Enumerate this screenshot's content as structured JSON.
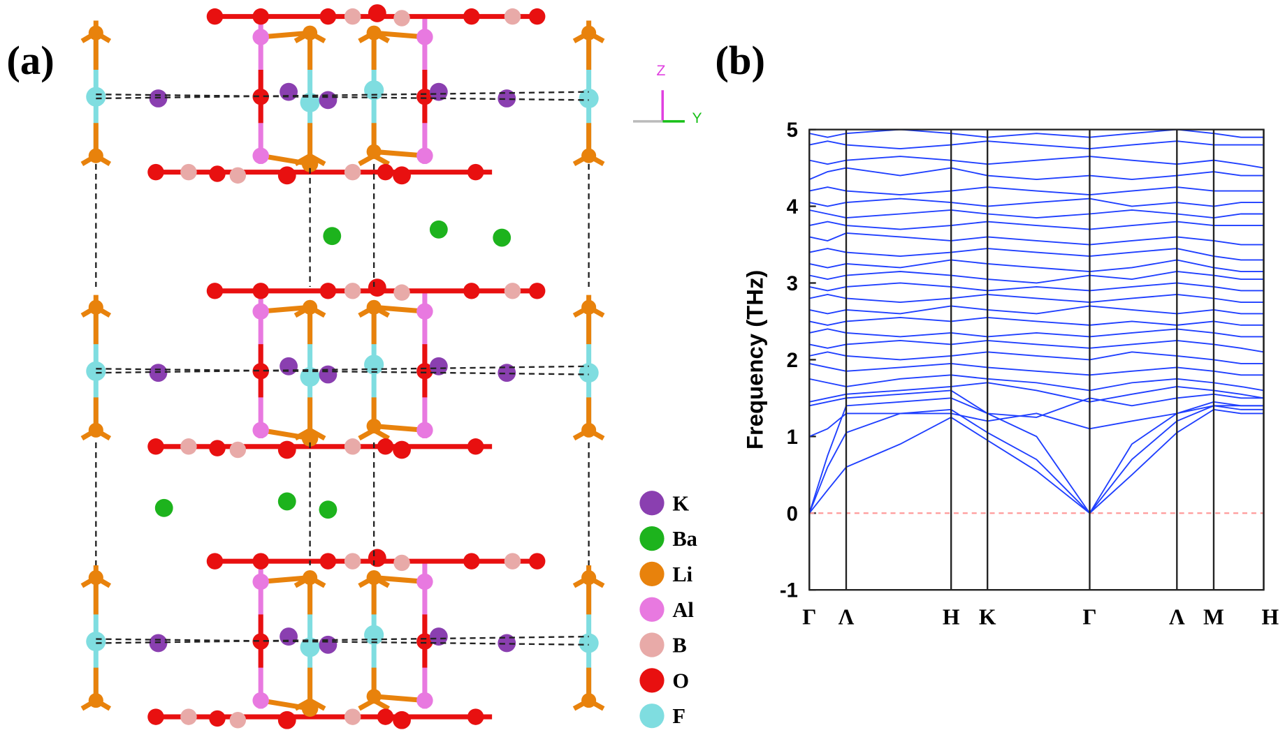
{
  "panel_a": {
    "label": "(a)",
    "axis_labels": [
      "Z",
      "Y"
    ],
    "legend": [
      {
        "label": "K",
        "color": "#8a3fb0"
      },
      {
        "label": "Ba",
        "color": "#1db31d"
      },
      {
        "label": "Li",
        "color": "#e8820c"
      },
      {
        "label": "Al",
        "color": "#e879e0"
      },
      {
        "label": "B",
        "color": "#e8aaa8"
      },
      {
        "label": "O",
        "color": "#e81010"
      },
      {
        "label": "F",
        "color": "#7fdde0"
      }
    ]
  },
  "chart_data": {
    "type": "line",
    "label": "(b)",
    "ylabel": "Frequency (THz)",
    "color": "#1f3fff",
    "x": [
      0,
      0.04,
      0.081,
      0.2,
      0.312,
      0.392,
      0.5,
      0.617,
      0.71,
      0.809,
      0.89,
      0.95,
      1.0
    ],
    "xlim": [
      0,
      1
    ],
    "xticks": [
      {
        "value": 0,
        "label": "Γ"
      },
      {
        "value": 0.081,
        "label": "Λ"
      },
      {
        "value": 0.312,
        "label": "H"
      },
      {
        "value": 0.392,
        "label": "K"
      },
      {
        "value": 0.617,
        "label": "Γ"
      },
      {
        "value": 0.809,
        "label": "Λ"
      },
      {
        "value": 0.89,
        "label": "M"
      },
      {
        "value": 1.0,
        "label": "H"
      }
    ],
    "ylim": [
      -1,
      5
    ],
    "yticks": [
      -1,
      0,
      1,
      2,
      3,
      4,
      5
    ],
    "reference_line": {
      "value": 0,
      "color": "#ff9a9a",
      "dashed": true
    },
    "series": [
      {
        "values": [
          0,
          0.3,
          0.6,
          0.9,
          1.25,
          0.95,
          0.55,
          0,
          0.5,
          1.05,
          1.35,
          1.3,
          1.3
        ]
      },
      {
        "values": [
          0,
          0.6,
          1.05,
          1.3,
          1.35,
          1.05,
          0.7,
          0,
          0.7,
          1.2,
          1.4,
          1.35,
          1.35
        ]
      },
      {
        "values": [
          0,
          0.75,
          1.4,
          1.45,
          1.5,
          1.3,
          1.0,
          0,
          0.9,
          1.3,
          1.45,
          1.4,
          1.4
        ]
      },
      {
        "values": [
          1.0,
          1.1,
          1.3,
          1.3,
          1.3,
          1.2,
          1.3,
          1.1,
          1.2,
          1.3,
          1.4,
          1.4,
          1.4
        ]
      },
      {
        "values": [
          1.4,
          1.45,
          1.5,
          1.55,
          1.6,
          1.3,
          1.25,
          1.5,
          1.4,
          1.5,
          1.55,
          1.5,
          1.5
        ]
      },
      {
        "values": [
          1.45,
          1.5,
          1.55,
          1.6,
          1.65,
          1.7,
          1.6,
          1.45,
          1.55,
          1.65,
          1.6,
          1.55,
          1.5
        ]
      },
      {
        "values": [
          1.75,
          1.7,
          1.65,
          1.75,
          1.8,
          1.75,
          1.7,
          1.6,
          1.7,
          1.75,
          1.7,
          1.65,
          1.6
        ]
      },
      {
        "values": [
          1.95,
          1.9,
          1.85,
          1.9,
          1.95,
          1.9,
          1.85,
          1.8,
          1.85,
          1.9,
          1.85,
          1.8,
          1.8
        ]
      },
      {
        "values": [
          2.05,
          2.1,
          2.05,
          2.0,
          2.05,
          2.1,
          2.05,
          2.0,
          2.1,
          2.05,
          2.0,
          1.95,
          1.95
        ]
      },
      {
        "values": [
          2.2,
          2.15,
          2.2,
          2.25,
          2.2,
          2.25,
          2.2,
          2.15,
          2.2,
          2.25,
          2.2,
          2.15,
          2.1
        ]
      },
      {
        "values": [
          2.35,
          2.4,
          2.35,
          2.3,
          2.35,
          2.3,
          2.35,
          2.3,
          2.35,
          2.4,
          2.35,
          2.3,
          2.3
        ]
      },
      {
        "values": [
          2.5,
          2.45,
          2.5,
          2.55,
          2.5,
          2.55,
          2.5,
          2.45,
          2.5,
          2.45,
          2.5,
          2.45,
          2.45
        ]
      },
      {
        "values": [
          2.65,
          2.6,
          2.65,
          2.6,
          2.7,
          2.65,
          2.6,
          2.7,
          2.65,
          2.6,
          2.65,
          2.6,
          2.6
        ]
      },
      {
        "values": [
          2.8,
          2.85,
          2.8,
          2.75,
          2.8,
          2.85,
          2.8,
          2.75,
          2.8,
          2.85,
          2.8,
          2.75,
          2.75
        ]
      },
      {
        "values": [
          2.95,
          2.9,
          2.95,
          3.0,
          2.95,
          2.9,
          2.95,
          2.9,
          2.95,
          3.0,
          2.95,
          2.9,
          2.9
        ]
      },
      {
        "values": [
          3.1,
          3.05,
          3.1,
          3.15,
          3.1,
          3.05,
          3.0,
          3.1,
          3.05,
          3.15,
          3.1,
          3.05,
          3.05
        ]
      },
      {
        "values": [
          3.25,
          3.2,
          3.25,
          3.2,
          3.3,
          3.25,
          3.2,
          3.15,
          3.2,
          3.3,
          3.2,
          3.15,
          3.15
        ]
      },
      {
        "values": [
          3.4,
          3.45,
          3.4,
          3.35,
          3.4,
          3.45,
          3.4,
          3.35,
          3.4,
          3.45,
          3.35,
          3.3,
          3.3
        ]
      },
      {
        "values": [
          3.6,
          3.55,
          3.65,
          3.6,
          3.55,
          3.6,
          3.55,
          3.5,
          3.55,
          3.6,
          3.55,
          3.5,
          3.5
        ]
      },
      {
        "values": [
          3.75,
          3.8,
          3.75,
          3.7,
          3.75,
          3.8,
          3.75,
          3.7,
          3.75,
          3.8,
          3.75,
          3.75,
          3.75
        ]
      },
      {
        "values": [
          3.95,
          3.9,
          3.85,
          3.9,
          3.95,
          3.9,
          3.85,
          3.9,
          3.95,
          3.9,
          3.85,
          3.9,
          3.9
        ]
      },
      {
        "values": [
          4.05,
          4.0,
          4.05,
          4.1,
          4.05,
          4.0,
          4.05,
          4.1,
          4.0,
          4.05,
          4.0,
          4.05,
          4.05
        ]
      },
      {
        "values": [
          4.2,
          4.25,
          4.2,
          4.15,
          4.2,
          4.25,
          4.2,
          4.15,
          4.2,
          4.25,
          4.2,
          4.2,
          4.2
        ]
      },
      {
        "values": [
          4.35,
          4.45,
          4.5,
          4.4,
          4.5,
          4.4,
          4.35,
          4.4,
          4.35,
          4.4,
          4.45,
          4.4,
          4.4
        ]
      },
      {
        "values": [
          4.6,
          4.55,
          4.6,
          4.65,
          4.6,
          4.55,
          4.6,
          4.65,
          4.6,
          4.55,
          4.6,
          4.55,
          4.5
        ]
      },
      {
        "values": [
          4.8,
          4.85,
          4.8,
          4.75,
          4.8,
          4.85,
          4.8,
          4.75,
          4.8,
          4.85,
          4.8,
          4.8,
          4.8
        ]
      },
      {
        "values": [
          4.95,
          4.9,
          4.95,
          5.0,
          4.95,
          4.9,
          4.95,
          4.9,
          4.95,
          5.0,
          4.95,
          4.9,
          4.9
        ]
      }
    ]
  }
}
